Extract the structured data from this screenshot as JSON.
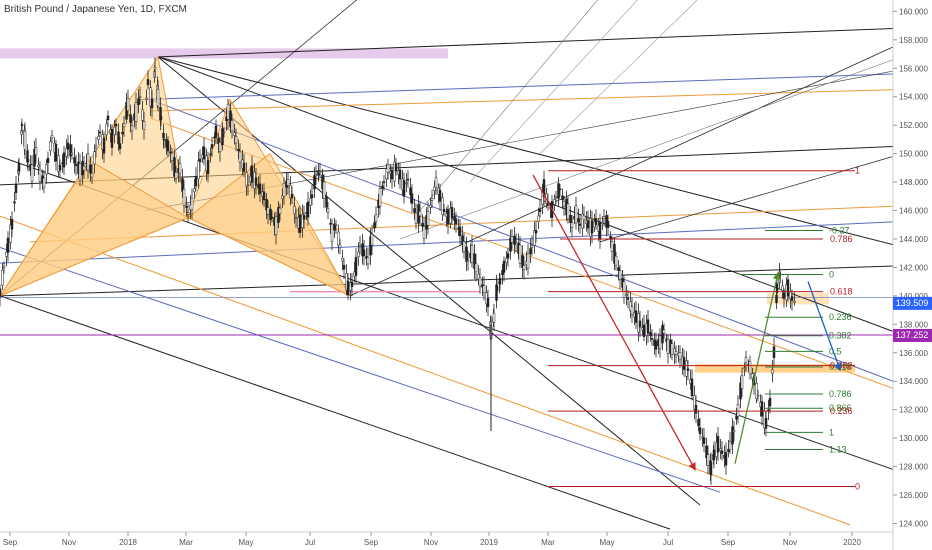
{
  "title": "British Pound / Japanese Yen, 1D, FXCM",
  "chart_data": {
    "type": "candlestick",
    "ylim": [
      123.4,
      160.8
    ],
    "y_ticks": [
      "124.000",
      "126.000",
      "128.000",
      "130.000",
      "132.000",
      "134.000",
      "136.000",
      "138.000",
      "140.000",
      "142.000",
      "144.000",
      "146.000",
      "148.000",
      "150.000",
      "152.000",
      "154.000",
      "156.000",
      "158.000",
      "160.000"
    ],
    "x_ticks": [
      "Sep",
      "Nov",
      "2018",
      "Mar",
      "May",
      "Jul",
      "Sep",
      "Nov",
      "2019",
      "Mar",
      "May",
      "Jul",
      "Sep",
      "Nov",
      "2020"
    ],
    "price_label": "139.509",
    "level_label": "137.252",
    "price_value": 139.509,
    "level_value": 137.252,
    "price_color": "#2962ff",
    "level_color": "#9c27b0",
    "close_path": [
      [
        0,
        140.2
      ],
      [
        4,
        142
      ],
      [
        8,
        143.5
      ],
      [
        12,
        145
      ],
      [
        16,
        147.5
      ],
      [
        19,
        149
      ],
      [
        22,
        152
      ],
      [
        25,
        151
      ],
      [
        28,
        149.5
      ],
      [
        32,
        148.7
      ],
      [
        36,
        150.2
      ],
      [
        40,
        148.5
      ],
      [
        44,
        148
      ],
      [
        48,
        149.5
      ],
      [
        52,
        151.2
      ],
      [
        56,
        150
      ],
      [
        60,
        149
      ],
      [
        64,
        149.5
      ],
      [
        68,
        150.5
      ],
      [
        72,
        150
      ],
      [
        76,
        149.2
      ],
      [
        80,
        148.8
      ],
      [
        84,
        149
      ],
      [
        88,
        149.5
      ],
      [
        92,
        148.5
      ],
      [
        96,
        150.5
      ],
      [
        100,
        151.5
      ],
      [
        104,
        150.5
      ],
      [
        108,
        152.5
      ],
      [
        112,
        151
      ],
      [
        116,
        152
      ],
      [
        120,
        150.5
      ],
      [
        124,
        152
      ],
      [
        128,
        153.5
      ],
      [
        132,
        151.8
      ],
      [
        136,
        153
      ],
      [
        140,
        154
      ],
      [
        144,
        152
      ],
      [
        148,
        155
      ],
      [
        152,
        153.5
      ],
      [
        155,
        156
      ],
      [
        158,
        154
      ],
      [
        161,
        152.5
      ],
      [
        164,
        151
      ],
      [
        168,
        150.5
      ],
      [
        172,
        149.8
      ],
      [
        176,
        148.5
      ],
      [
        180,
        149
      ],
      [
        184,
        147
      ],
      [
        188,
        145.8
      ],
      [
        192,
        146.5
      ],
      [
        196,
        148
      ],
      [
        200,
        149.5
      ],
      [
        204,
        150
      ],
      [
        208,
        149
      ],
      [
        212,
        150.5
      ],
      [
        216,
        151.5
      ],
      [
        220,
        150.5
      ],
      [
        224,
        151.5
      ],
      [
        228,
        153
      ],
      [
        232,
        152
      ],
      [
        236,
        151
      ],
      [
        240,
        149.8
      ],
      [
        244,
        149
      ],
      [
        248,
        147.8
      ],
      [
        252,
        148.5
      ],
      [
        256,
        148
      ],
      [
        260,
        147.5
      ],
      [
        264,
        147
      ],
      [
        268,
        146
      ],
      [
        272,
        145.5
      ],
      [
        276,
        145
      ],
      [
        280,
        146
      ],
      [
        284,
        147.5
      ],
      [
        288,
        148
      ],
      [
        292,
        147
      ],
      [
        296,
        145.5
      ],
      [
        300,
        145
      ],
      [
        304,
        145.5
      ],
      [
        308,
        146
      ],
      [
        312,
        147
      ],
      [
        316,
        148.5
      ],
      [
        320,
        148.7
      ],
      [
        324,
        147.5
      ],
      [
        328,
        146
      ],
      [
        332,
        144.5
      ],
      [
        336,
        145
      ],
      [
        340,
        143.5
      ],
      [
        344,
        142
      ],
      [
        348,
        140.5
      ],
      [
        352,
        140.8
      ],
      [
        356,
        142
      ],
      [
        360,
        143.5
      ],
      [
        364,
        143
      ],
      [
        368,
        142.5
      ],
      [
        372,
        144
      ],
      [
        376,
        145.5
      ],
      [
        380,
        147
      ],
      [
        384,
        148
      ],
      [
        388,
        149
      ],
      [
        392,
        148.5
      ],
      [
        396,
        149
      ],
      [
        400,
        148.5
      ],
      [
        404,
        147.5
      ],
      [
        408,
        148.2
      ],
      [
        412,
        146.8
      ],
      [
        416,
        145.5
      ],
      [
        420,
        145.8
      ],
      [
        424,
        144.5
      ],
      [
        428,
        145.5
      ],
      [
        432,
        146.8
      ],
      [
        436,
        148
      ],
      [
        440,
        147
      ],
      [
        444,
        146
      ],
      [
        448,
        145.5
      ],
      [
        452,
        145.8
      ],
      [
        456,
        145.2
      ],
      [
        460,
        144.5
      ],
      [
        464,
        143.5
      ],
      [
        468,
        142.5
      ],
      [
        472,
        143
      ],
      [
        476,
        142
      ],
      [
        480,
        141
      ],
      [
        484,
        140.5
      ],
      [
        488,
        139.5
      ],
      [
        491,
        137.5
      ],
      [
        494,
        138.5
      ],
      [
        497,
        140.5
      ],
      [
        500,
        141
      ],
      [
        504,
        142
      ],
      [
        508,
        142.8
      ],
      [
        512,
        144
      ],
      [
        516,
        143.8
      ],
      [
        520,
        143
      ],
      [
        524,
        142
      ],
      [
        528,
        142.5
      ],
      [
        532,
        143.5
      ],
      [
        536,
        144.5
      ],
      [
        540,
        146
      ],
      [
        544,
        147.5
      ],
      [
        548,
        146.5
      ],
      [
        552,
        146
      ],
      [
        556,
        147
      ],
      [
        560,
        147.5
      ],
      [
        564,
        146.5
      ],
      [
        568,
        146
      ],
      [
        572,
        145
      ],
      [
        576,
        145.8
      ],
      [
        580,
        145
      ],
      [
        584,
        145.5
      ],
      [
        588,
        145
      ],
      [
        592,
        144.8
      ],
      [
        596,
        145.2
      ],
      [
        600,
        144.5
      ],
      [
        604,
        145.5
      ],
      [
        608,
        145
      ],
      [
        612,
        143.5
      ],
      [
        616,
        142.5
      ],
      [
        620,
        141.5
      ],
      [
        624,
        140.5
      ],
      [
        628,
        139.8
      ],
      [
        632,
        139
      ],
      [
        636,
        138.5
      ],
      [
        640,
        138
      ],
      [
        644,
        137.5
      ],
      [
        648,
        137.8
      ],
      [
        652,
        137
      ],
      [
        656,
        136.5
      ],
      [
        660,
        136.8
      ],
      [
        664,
        137.5
      ],
      [
        668,
        136.5
      ],
      [
        672,
        136.3
      ],
      [
        676,
        136
      ],
      [
        680,
        135.8
      ],
      [
        684,
        135.2
      ],
      [
        688,
        134.8
      ],
      [
        692,
        133.5
      ],
      [
        696,
        132
      ],
      [
        700,
        130.5
      ],
      [
        704,
        129.8
      ],
      [
        708,
        128.5
      ],
      [
        711,
        127.8
      ],
      [
        714,
        128.8
      ],
      [
        718,
        129.5
      ],
      [
        722,
        129
      ],
      [
        726,
        128.5
      ],
      [
        730,
        129.5
      ],
      [
        734,
        130.5
      ],
      [
        738,
        132
      ],
      [
        742,
        134
      ],
      [
        746,
        135.5
      ],
      [
        750,
        135
      ],
      [
        754,
        134
      ],
      [
        758,
        133
      ],
      [
        762,
        132
      ],
      [
        766,
        131
      ],
      [
        770,
        132.5
      ],
      [
        774,
        136
      ],
      [
        777,
        140.5
      ],
      [
        780,
        141.5
      ],
      [
        784,
        140
      ],
      [
        788,
        140.5
      ],
      [
        792,
        139.8
      ],
      [
        796,
        139.5
      ]
    ],
    "outlier_wicks": [
      [
        491,
        130.5
      ],
      [
        491,
        137.5
      ]
    ],
    "fib_right": [
      {
        "label": "1",
        "value": 148.8,
        "color": "#b71c1c"
      },
      {
        "label": "-0.27",
        "value": 144.6,
        "color": "#2e7d32"
      },
      {
        "label": "0.786",
        "value": 144.0,
        "color": "#b71c1c"
      },
      {
        "label": "0",
        "value": 141.5,
        "color": "#2e7d32"
      },
      {
        "label": "0.618",
        "value": 140.3,
        "color": "#b71c1c"
      },
      {
        "label": "0.236",
        "value": 138.5,
        "color": "#2e7d32"
      },
      {
        "label": "0.382",
        "value": 137.2,
        "color": "#2e7d32"
      },
      {
        "label": "0.5",
        "value": 136.1,
        "color": "#2e7d32"
      },
      {
        "label": "0.618",
        "value": 135.0,
        "color": "#2e7d32"
      },
      {
        "label": "0.382",
        "value": 135.1,
        "color": "#b71c1c"
      },
      {
        "label": "0.786",
        "value": 133.1,
        "color": "#2e7d32"
      },
      {
        "label": "0.866",
        "value": 132.1,
        "color": "#2e7d32"
      },
      {
        "label": "0.236",
        "value": 131.9,
        "color": "#b71c1c"
      },
      {
        "label": "1",
        "value": 130.4,
        "color": "#2e7d32"
      },
      {
        "label": "1.13",
        "value": 129.2,
        "color": "#2e7d32"
      },
      {
        "label": "0",
        "value": 126.6,
        "color": "#b71c1c"
      }
    ]
  }
}
